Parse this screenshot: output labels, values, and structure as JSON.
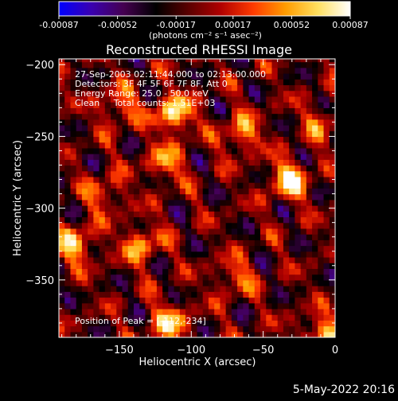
{
  "colorbar": {
    "tick_labels": [
      "-0.00087",
      "-0.00052",
      "-0.00017",
      "0.00017",
      "0.00052",
      "0.00087"
    ],
    "tick_values": [
      -0.00087,
      -0.00052,
      -0.00017,
      0.00017,
      0.00052,
      0.00087
    ],
    "range": [
      -0.00087,
      0.00087
    ],
    "units_label": "(photons cm⁻² s⁻¹ asec⁻²)",
    "colors": [
      "#0000ff",
      "#3a00b0",
      "#450050",
      "#000000",
      "#5a0000",
      "#b00000",
      "#ff3a00",
      "#ff9c00",
      "#ffe060",
      "#ffffff"
    ]
  },
  "info_lines": [
    "27-Sep-2003 02:11:44.000 to 02:13:00.000",
    "Detectors: 3F 4F 5F 6F 7F 8F, Att 0",
    "Energy Range: 25.0 - 50.0 keV",
    "Clean     Total counts: 1.51E+03"
  ],
  "peak_label": "Position of Peak = [-112,-234]",
  "footer_date": "5-May-2022 20:16",
  "chart_data": {
    "type": "heatmap",
    "title": "Reconstructed RHESSI Image",
    "xlabel": "Heliocentric X (arcsec)",
    "ylabel": "Heliocentric Y (arcsec)",
    "xlim": [
      -192,
      0
    ],
    "ylim": [
      -390,
      -196
    ],
    "xticks": [
      -150,
      -100,
      -50,
      0
    ],
    "yticks": [
      -200,
      -250,
      -300,
      -350
    ],
    "peak": [
      -112,
      -234
    ],
    "sources": [
      {
        "x": -112,
        "y": -234,
        "value": 0.00087
      },
      {
        "x": -32,
        "y": -280,
        "value": 0.00085
      },
      {
        "x": -150,
        "y": -229,
        "value": 0.0005
      },
      {
        "x": -65,
        "y": -248,
        "value": 0.0006
      },
      {
        "x": -118,
        "y": -268,
        "value": 0.00055
      },
      {
        "x": -180,
        "y": -325,
        "value": 0.0007
      },
      {
        "x": -135,
        "y": -325,
        "value": 0.0006
      },
      {
        "x": -115,
        "y": -380,
        "value": 0.0007
      },
      {
        "x": -10,
        "y": -388,
        "value": 0.00065
      },
      {
        "x": -160,
        "y": -290,
        "value": 0.00045
      },
      {
        "x": -70,
        "y": -348,
        "value": 0.00045
      },
      {
        "x": -10,
        "y": -240,
        "value": 0.0004
      }
    ]
  }
}
